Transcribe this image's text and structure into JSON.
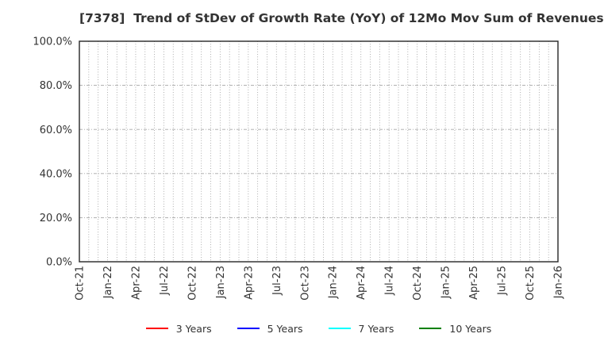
{
  "chart_data": {
    "type": "line",
    "title": "[7378]  Trend of StDev of Growth Rate (YoY) of 12Mo Mov Sum of Revenues",
    "xlabel": "",
    "ylabel": "",
    "ylim": [
      0,
      100
    ],
    "y_ticks": [
      "0.0%",
      "20.0%",
      "40.0%",
      "60.0%",
      "80.0%",
      "100.0%"
    ],
    "x_ticks": [
      "Oct-21",
      "Jan-22",
      "Apr-22",
      "Jul-22",
      "Oct-22",
      "Jan-23",
      "Apr-23",
      "Jul-23",
      "Oct-23",
      "Jan-24",
      "Apr-24",
      "Jul-24",
      "Oct-24",
      "Jan-25",
      "Apr-25",
      "Jul-25",
      "Oct-25",
      "Jan-26"
    ],
    "x_minor_gridlines_per_major_tick": 3,
    "grid": {
      "shown": true,
      "vertical_style": "dotted-monthly",
      "horizontal_style": "dash-dot-at-major-ticks"
    },
    "legend_position": "bottom-center",
    "series": [
      {
        "name": "3 Years",
        "color": "#ff0000",
        "values": []
      },
      {
        "name": "5 Years",
        "color": "#0000ff",
        "values": []
      },
      {
        "name": "7 Years",
        "color": "#00ffff",
        "values": []
      },
      {
        "name": "10 Years",
        "color": "#008000",
        "values": []
      }
    ],
    "style": {
      "grid_color": "#9b9b9b",
      "hgrid_color": "#a6a6a6",
      "border_color": "#262626",
      "text_color": "#333333",
      "background": "#ffffff"
    }
  }
}
